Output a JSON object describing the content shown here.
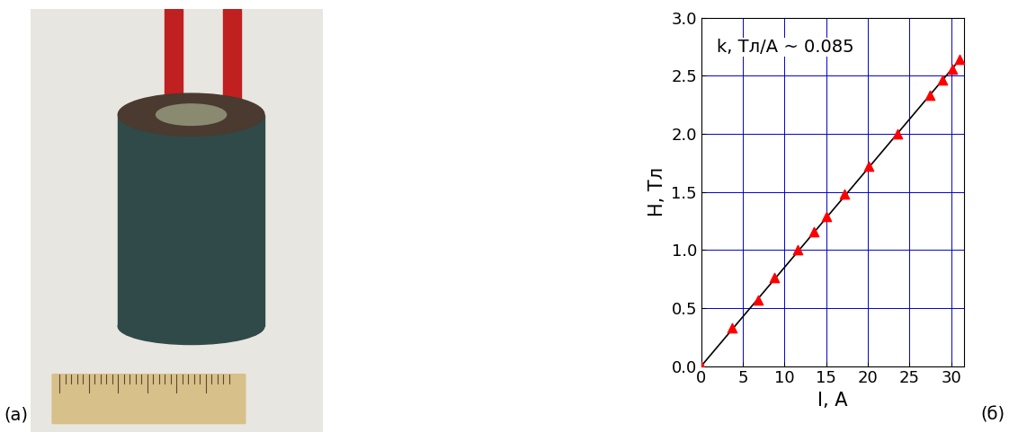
{
  "chart_data": {
    "type": "scatter",
    "x_label": "I, A",
    "y_label": "H, Тл",
    "annotations": [
      "k, Тл/А ~ 0.085"
    ],
    "series": [
      {
        "type": "scatter",
        "color": "#ff0000",
        "marker": "triangle",
        "x": [
          0,
          3.7,
          6.8,
          8.8,
          11.6,
          13.5,
          15.0,
          17.2,
          20.1,
          23.6,
          27.4,
          29.0,
          30.2,
          31.0
        ],
        "values": [
          0,
          0.33,
          0.57,
          0.76,
          1.0,
          1.16,
          1.29,
          1.48,
          1.72,
          2.0,
          2.33,
          2.46,
          2.56,
          2.64
        ]
      },
      {
        "type": "line",
        "color": "#000000",
        "line_style": "solid",
        "x": [
          0,
          31.0
        ],
        "values": [
          0,
          2.635
        ]
      }
    ],
    "xlim": [
      0,
      31.5
    ],
    "ylim": [
      0,
      3.0
    ],
    "xticks": [
      0,
      5,
      10,
      15,
      20,
      25,
      30
    ],
    "yticks": [
      {
        "value": 0,
        "label": "0.0"
      },
      0.5,
      {
        "value": 1,
        "label": "1.0"
      },
      1.5,
      {
        "value": 2,
        "label": "2.0"
      },
      2.5,
      {
        "value": 3,
        "label": "3.0"
      }
    ],
    "grid": true
  },
  "panel_labels": [
    "(a)",
    "(б)"
  ]
}
